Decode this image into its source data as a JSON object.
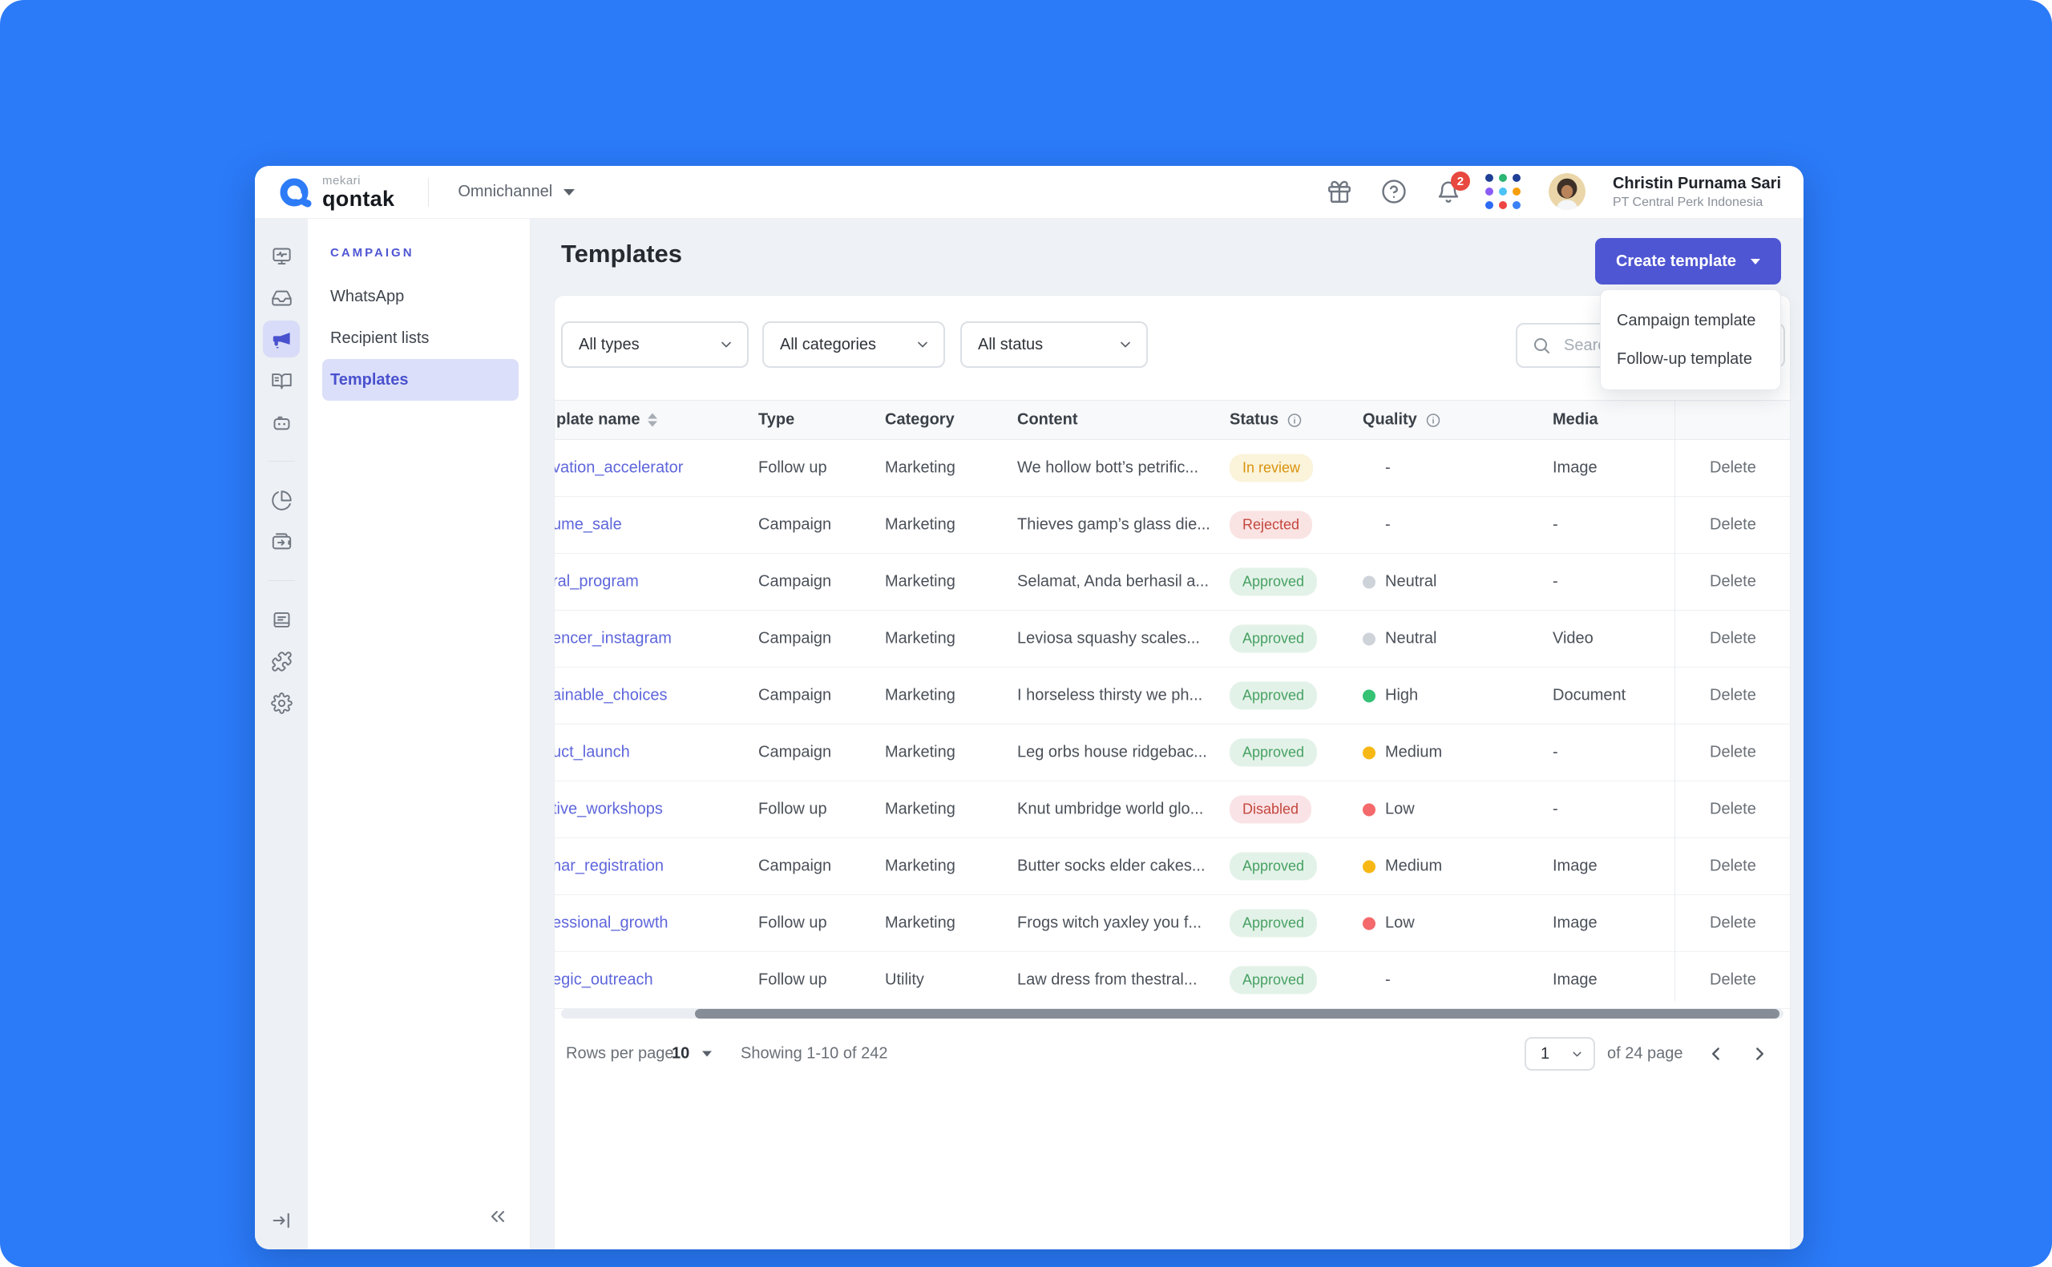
{
  "colors": {
    "frame_blue": "#2B7AF7",
    "accent_indigo": "#4F56D3",
    "link_indigo": "#5E66DB",
    "status": {
      "In review": {
        "text": "#D9930D",
        "bg": "#FBF3DA"
      },
      "Rejected": {
        "text": "#C4473E",
        "bg": "#FAE3E3"
      },
      "Approved": {
        "text": "#47A164",
        "bg": "#E3F2E8"
      },
      "Disabled": {
        "text": "#C4473E",
        "bg": "#FAE3E6"
      }
    },
    "quality": {
      "Neutral": "#CED3DA",
      "High": "#35C275",
      "Medium": "#F7B815",
      "Low": "#F4696B"
    }
  },
  "topbar": {
    "brand_top": "mekari",
    "brand_bottom": "qontak",
    "product": "Omnichannel",
    "notification_count": "2",
    "apps_grid_colors": [
      "#1F3F96",
      "#2BB673",
      "#1F3F96",
      "#8B5CF6",
      "#4CC3F7",
      "#F59E0B",
      "#2D6BF4",
      "#EF4444",
      "#3B82F6"
    ],
    "user_name": "Christin Purnama Sari",
    "user_company": "PT Central Perk Indonesia"
  },
  "icon_rail": {
    "items": [
      {
        "name": "dashboard-icon",
        "key": "dashboard"
      },
      {
        "name": "inbox-icon",
        "key": "inbox"
      },
      {
        "name": "campaign-megaphone-icon",
        "key": "campaign",
        "active": true
      },
      {
        "name": "contacts-book-icon",
        "key": "contacts"
      },
      {
        "name": "chatbot-icon",
        "key": "bot"
      },
      {
        "divider": true
      },
      {
        "name": "reports-pie-icon",
        "key": "reports"
      },
      {
        "name": "balance-wallet-icon",
        "key": "balance"
      },
      {
        "divider": true
      },
      {
        "name": "docs-icon",
        "key": "docs"
      },
      {
        "name": "integrations-puzzle-icon",
        "key": "integrations"
      },
      {
        "name": "settings-gear-icon",
        "key": "settings"
      }
    ]
  },
  "sidebar": {
    "section": "CAMPAIGN",
    "items": [
      {
        "label": "WhatsApp",
        "active": false
      },
      {
        "label": "Recipient lists",
        "active": false
      },
      {
        "label": "Templates",
        "active": true
      }
    ]
  },
  "page": {
    "title": "Templates",
    "create_button_label": "Create template",
    "create_menu": [
      "Campaign template",
      "Follow-up template"
    ]
  },
  "filters": {
    "type": "All types",
    "category": "All categories",
    "status": "All status",
    "search_placeholder": "Search"
  },
  "table": {
    "columns": {
      "name": "plate name",
      "type": "Type",
      "category": "Category",
      "content": "Content",
      "status": "Status",
      "quality": "Quality",
      "media": "Media"
    },
    "action_label": "Delete",
    "rows": [
      {
        "name": "vation_accelerator",
        "type": "Follow up",
        "category": "Marketing",
        "content": "We hollow bott’s petrific...",
        "status": "In review",
        "quality": "-",
        "media": "Image"
      },
      {
        "name": "ume_sale",
        "type": "Campaign",
        "category": "Marketing",
        "content": "Thieves gamp’s glass die...",
        "status": "Rejected",
        "quality": "-",
        "media": "-"
      },
      {
        "name": "ral_program",
        "type": "Campaign",
        "category": "Marketing",
        "content": "Selamat, Anda berhasil a...",
        "status": "Approved",
        "quality": "Neutral",
        "media": "-"
      },
      {
        "name": "encer_instagram",
        "type": "Campaign",
        "category": "Marketing",
        "content": "Leviosa squashy scales...",
        "status": "Approved",
        "quality": "Neutral",
        "media": "Video"
      },
      {
        "name": "ainable_choices",
        "type": "Campaign",
        "category": "Marketing",
        "content": "I horseless thirsty we ph...",
        "status": "Approved",
        "quality": "High",
        "media": "Document"
      },
      {
        "name": "uct_launch",
        "type": "Campaign",
        "category": "Marketing",
        "content": "Leg orbs house ridgebac...",
        "status": "Approved",
        "quality": "Medium",
        "media": "-"
      },
      {
        "name": "tive_workshops",
        "type": "Follow up",
        "category": "Marketing",
        "content": "Knut umbridge world glo...",
        "status": "Disabled",
        "quality": "Low",
        "media": "-"
      },
      {
        "name": "nar_registration",
        "type": "Campaign",
        "category": "Marketing",
        "content": "Butter socks elder cakes...",
        "status": "Approved",
        "quality": "Medium",
        "media": "Image"
      },
      {
        "name": "essional_growth",
        "type": "Follow up",
        "category": "Marketing",
        "content": "Frogs witch yaxley you f...",
        "status": "Approved",
        "quality": "Low",
        "media": "Image"
      },
      {
        "name": "egic_outreach",
        "type": "Follow up",
        "category": "Utility",
        "content": "Law dress from thestral...",
        "status": "Approved",
        "quality": "-",
        "media": "Image"
      }
    ]
  },
  "pagination": {
    "rows_per_page_label": "Rows per page",
    "rows_per_page_value": "10",
    "showing_text": "Showing 1-10 of 242",
    "current_page": "1",
    "total_label": "of 24 page"
  }
}
